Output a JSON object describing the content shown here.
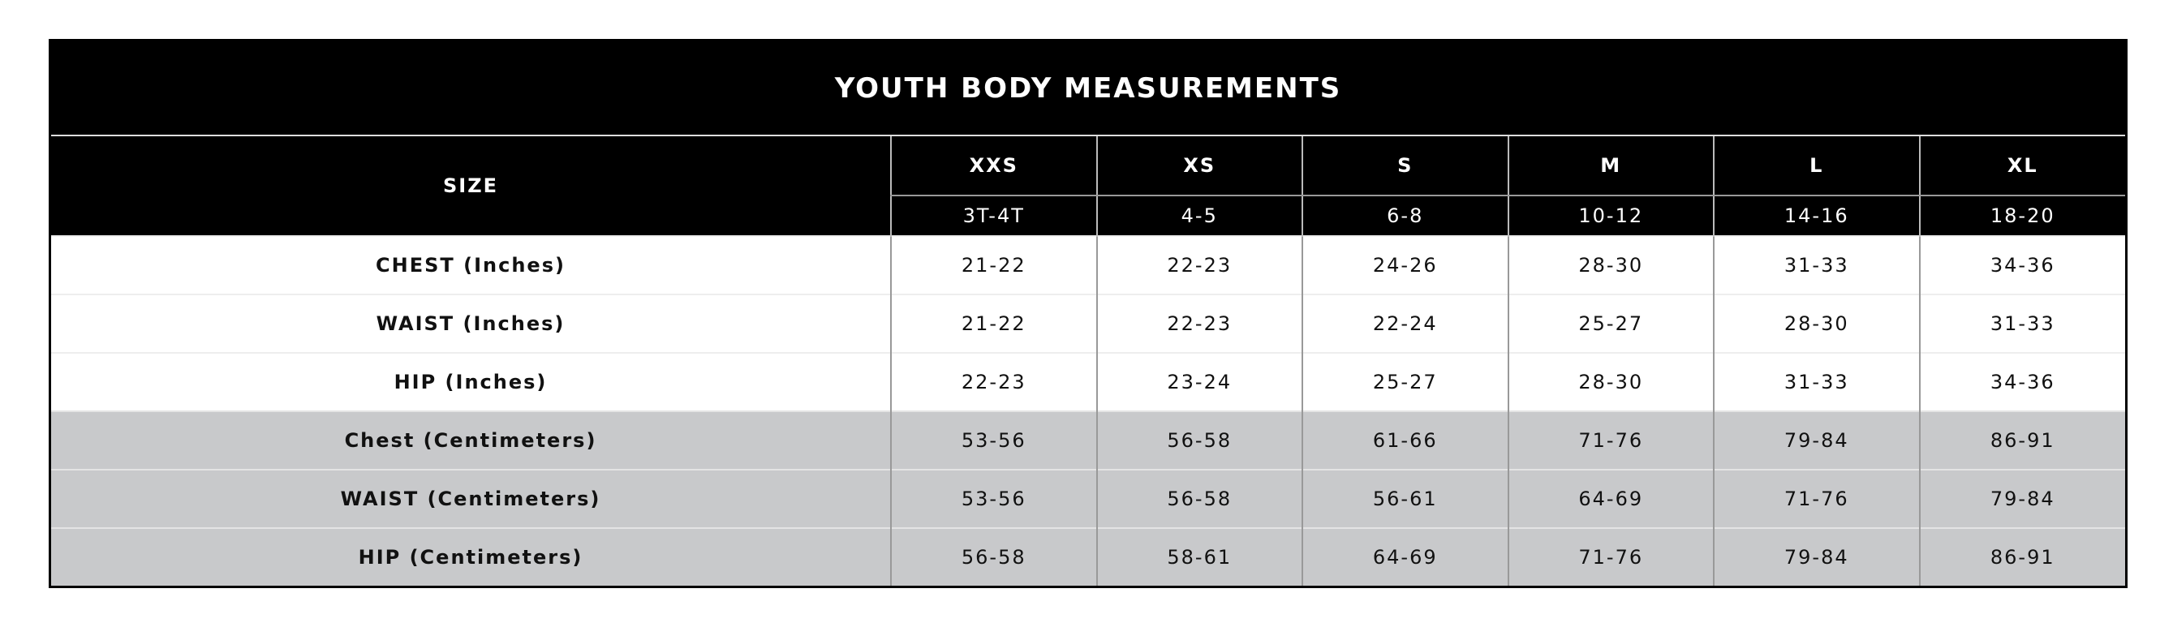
{
  "title": "YOUTH BODY MEASUREMENTS",
  "header": {
    "size_label": "SIZE",
    "sizes": [
      "XXS",
      "XS",
      "S",
      "M",
      "L",
      "XL"
    ],
    "ages": [
      "3T-4T",
      "4-5",
      "6-8",
      "10-12",
      "14-16",
      "18-20"
    ]
  },
  "rows": [
    {
      "label": "CHEST (Inches)",
      "values": [
        "21-22",
        "22-23",
        "24-26",
        "28-30",
        "31-33",
        "34-36"
      ]
    },
    {
      "label": "WAIST (Inches)",
      "values": [
        "21-22",
        "22-23",
        "22-24",
        "25-27",
        "28-30",
        "31-33"
      ]
    },
    {
      "label": "HIP (Inches)",
      "values": [
        "22-23",
        "23-24",
        "25-27",
        "28-30",
        "31-33",
        "34-36"
      ]
    },
    {
      "label": "Chest (Centimeters)",
      "values": [
        "53-56",
        "56-58",
        "61-66",
        "71-76",
        "79-84",
        "86-91"
      ]
    },
    {
      "label": "WAIST (Centimeters)",
      "values": [
        "53-56",
        "56-58",
        "56-61",
        "64-69",
        "71-76",
        "79-84"
      ]
    },
    {
      "label": "HIP (Centimeters)",
      "values": [
        "56-58",
        "58-61",
        "64-69",
        "71-76",
        "79-84",
        "86-91"
      ]
    }
  ]
}
